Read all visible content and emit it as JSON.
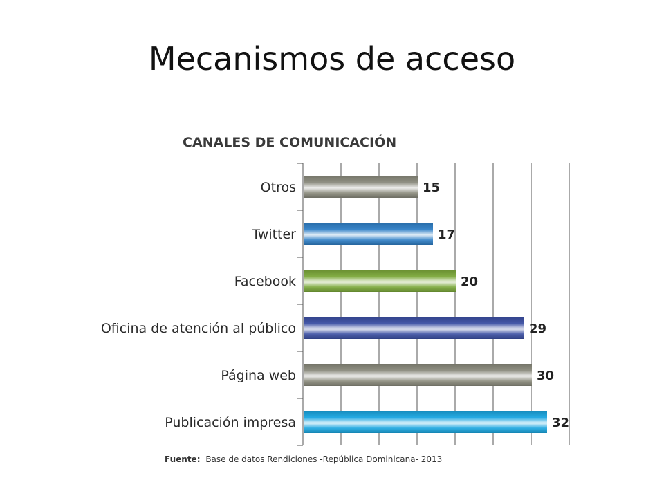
{
  "slide": {
    "title": "Mecanismos de acceso"
  },
  "chart_data": {
    "type": "bar",
    "orientation": "horizontal",
    "title": "CANALES DE COMUNICACIÓN",
    "categories": [
      "Otros",
      "Twitter",
      "Facebook",
      "Oficina de atención al público",
      "Página web",
      "Publicación impresa"
    ],
    "values": [
      15,
      17,
      20,
      29,
      30,
      32
    ],
    "data_labels": [
      "15",
      "17",
      "20",
      "29",
      "30",
      "32"
    ],
    "colors": [
      "#8a8a7c",
      "#2f7fc6",
      "#7ba83a",
      "#3b4fa3",
      "#8a8a7c",
      "#1aa6e0"
    ],
    "xlim": [
      0,
      35
    ],
    "grid": true,
    "legend": "none",
    "source_label": "Fuente:",
    "source_text": "Base de datos Rendiciones -República Dominicana- 2013"
  }
}
